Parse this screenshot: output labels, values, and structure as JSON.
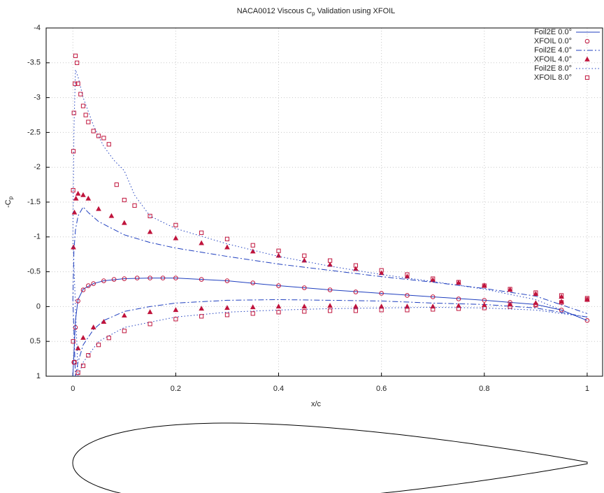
{
  "chart_data": {
    "type": "line",
    "title": {
      "before": "NACA0012 Viscous C",
      "sub": "p",
      "after": " Validation using XFOIL"
    },
    "x_label": "x/c",
    "y_label": {
      "before": "-C",
      "sub": "p"
    },
    "xlim": [
      -0.052,
      1.03
    ],
    "xticks": [
      0,
      0.2,
      0.4,
      0.6,
      0.8,
      1
    ],
    "ylim": [
      1,
      -4
    ],
    "yticks": [
      -4,
      -3.5,
      -3,
      -2.5,
      -2,
      -1.5,
      -1,
      -0.5,
      0,
      0.5,
      1
    ],
    "grid": true,
    "legend": "top-right",
    "series": [
      {
        "name": "Foil2E 0.0°",
        "color": "#1f3fbf",
        "style": "solid",
        "x": [
          0,
          0.005,
          0.01,
          0.02,
          0.04,
          0.06,
          0.1,
          0.15,
          0.2,
          0.3,
          0.4,
          0.5,
          0.6,
          0.7,
          0.8,
          0.9,
          0.95,
          1
        ],
        "values": [
          1,
          0.2,
          -0.1,
          -0.25,
          -0.33,
          -0.37,
          -0.4,
          -0.41,
          -0.41,
          -0.37,
          -0.3,
          -0.24,
          -0.19,
          -0.14,
          -0.09,
          -0.03,
          0.05,
          0.2
        ]
      },
      {
        "name": "XFOIL 0.0°",
        "color": "#c0143c",
        "marker": "circle",
        "x": [
          0.002,
          0.005,
          0.01,
          0.02,
          0.03,
          0.04,
          0.06,
          0.08,
          0.1,
          0.125,
          0.15,
          0.175,
          0.2,
          0.25,
          0.3,
          0.35,
          0.4,
          0.45,
          0.5,
          0.55,
          0.6,
          0.65,
          0.7,
          0.75,
          0.8,
          0.85,
          0.9,
          0.95,
          1
        ],
        "values": [
          0.8,
          0.3,
          -0.08,
          -0.24,
          -0.3,
          -0.33,
          -0.37,
          -0.39,
          -0.4,
          -0.41,
          -0.41,
          -0.41,
          -0.41,
          -0.39,
          -0.37,
          -0.34,
          -0.3,
          -0.27,
          -0.24,
          -0.21,
          -0.19,
          -0.16,
          -0.14,
          -0.11,
          -0.09,
          -0.06,
          -0.03,
          0.05,
          0.2
        ]
      },
      {
        "name": "Foil2E 4.0°",
        "color": "#1f3fbf",
        "style": "dashdot",
        "x": [
          1,
          0.9,
          0.8,
          0.7,
          0.6,
          0.5,
          0.4,
          0.3,
          0.2,
          0.15,
          0.1,
          0.06,
          0.04,
          0.02,
          0.01,
          0.005,
          0,
          0.002,
          0.005,
          0.01,
          0.02,
          0.03,
          0.05,
          0.1,
          0.15,
          0.2,
          0.3,
          0.4,
          0.5,
          0.6,
          0.7,
          0.8,
          0.9,
          1
        ],
        "values": [
          0.15,
          0.02,
          -0.03,
          -0.05,
          -0.08,
          -0.09,
          -0.1,
          -0.09,
          -0.05,
          0,
          0.07,
          0.2,
          0.33,
          0.55,
          0.8,
          1,
          -0.1,
          -0.8,
          -1.1,
          -1.3,
          -1.43,
          -1.35,
          -1.22,
          -1.03,
          -0.92,
          -0.84,
          -0.72,
          -0.61,
          -0.52,
          -0.43,
          -0.35,
          -0.26,
          -0.15,
          0.1
        ]
      },
      {
        "name": "XFOIL 4.0°",
        "color": "#c0143c",
        "marker": "triangle",
        "x": [
          0.001,
          0.003,
          0.006,
          0.01,
          0.02,
          0.03,
          0.05,
          0.075,
          0.1,
          0.15,
          0.2,
          0.25,
          0.3,
          0.35,
          0.4,
          0.45,
          0.5,
          0.55,
          0.6,
          0.65,
          0.7,
          0.75,
          0.8,
          0.85,
          0.9,
          0.95,
          1,
          0.01,
          0.02,
          0.04,
          0.06,
          0.1,
          0.15,
          0.2,
          0.25,
          0.3,
          0.35,
          0.4,
          0.45,
          0.5,
          0.55,
          0.6,
          0.65,
          0.7,
          0.75,
          0.8,
          0.85,
          0.9,
          0.95,
          1
        ],
        "values": [
          -0.85,
          -1.35,
          -1.55,
          -1.62,
          -1.6,
          -1.55,
          -1.4,
          -1.3,
          -1.2,
          -1.07,
          -0.98,
          -0.91,
          -0.85,
          -0.79,
          -0.73,
          -0.66,
          -0.6,
          -0.54,
          -0.48,
          -0.43,
          -0.38,
          -0.34,
          -0.3,
          -0.24,
          -0.18,
          -0.14,
          -0.1,
          0.6,
          0.45,
          0.3,
          0.22,
          0.13,
          0.08,
          0.05,
          0.03,
          0.02,
          0.01,
          0,
          0,
          -0.01,
          0,
          0,
          0,
          0,
          -0.01,
          -0.02,
          -0.03,
          -0.05,
          -0.07,
          -0.1
        ]
      },
      {
        "name": "Foil2E 8.0°",
        "color": "#1f3fbf",
        "style": "dotted",
        "x": [
          1,
          0.9,
          0.8,
          0.7,
          0.6,
          0.5,
          0.4,
          0.3,
          0.2,
          0.1,
          0.05,
          0.02,
          0.01,
          0,
          0.002,
          0.005,
          0.01,
          0.02,
          0.04,
          0.06,
          0.08,
          0.1,
          0.12,
          0.15,
          0.2,
          0.3,
          0.4,
          0.5,
          0.6,
          0.7,
          0.8,
          0.9,
          1
        ],
        "values": [
          0.15,
          0.05,
          0.02,
          0.01,
          0.02,
          0.03,
          0.05,
          0.08,
          0.15,
          0.3,
          0.5,
          0.8,
          1,
          -1,
          -2.5,
          -3.4,
          -3.3,
          -3,
          -2.6,
          -2.3,
          -2.1,
          -1.95,
          -1.6,
          -1.3,
          -1.12,
          -0.9,
          -0.72,
          -0.58,
          -0.46,
          -0.36,
          -0.25,
          -0.1,
          0.2
        ]
      },
      {
        "name": "XFOIL 8.0°",
        "color": "#c0143c",
        "marker": "square",
        "x": [
          0.0005,
          0.001,
          0.002,
          0.004,
          0.005,
          0.008,
          0.01,
          0.015,
          0.02,
          0.025,
          0.03,
          0.04,
          0.05,
          0.06,
          0.07,
          0.085,
          0.1,
          0.12,
          0.15,
          0.2,
          0.25,
          0.3,
          0.35,
          0.4,
          0.45,
          0.5,
          0.55,
          0.6,
          0.65,
          0.7,
          0.75,
          0.8,
          0.85,
          0.9,
          0.95,
          1,
          0.0005,
          0.003,
          0.01,
          0.02,
          0.03,
          0.05,
          0.07,
          0.1,
          0.15,
          0.2,
          0.25,
          0.3,
          0.35,
          0.4,
          0.45,
          0.5,
          0.55,
          0.6,
          0.65,
          0.7,
          0.75,
          0.8,
          0.85,
          0.9,
          0.95,
          1
        ],
        "values": [
          -1.67,
          -2.23,
          -2.78,
          -3.2,
          -3.6,
          -3.5,
          -3.2,
          -3.05,
          -2.88,
          -2.75,
          -2.65,
          -2.52,
          -2.45,
          -2.42,
          -2.33,
          -1.75,
          -1.53,
          -1.45,
          -1.3,
          -1.17,
          -1.06,
          -0.97,
          -0.88,
          -0.8,
          -0.73,
          -0.66,
          -0.59,
          -0.52,
          -0.46,
          -0.4,
          -0.35,
          -0.3,
          -0.25,
          -0.2,
          -0.16,
          -0.12,
          0.5,
          0.8,
          0.95,
          0.85,
          0.7,
          0.55,
          0.45,
          0.35,
          0.25,
          0.18,
          0.14,
          0.12,
          0.1,
          0.08,
          0.07,
          0.06,
          0.06,
          0.05,
          0.05,
          0.04,
          0.03,
          0.02,
          0,
          -0.02,
          -0.06,
          -0.1
        ]
      }
    ]
  }
}
